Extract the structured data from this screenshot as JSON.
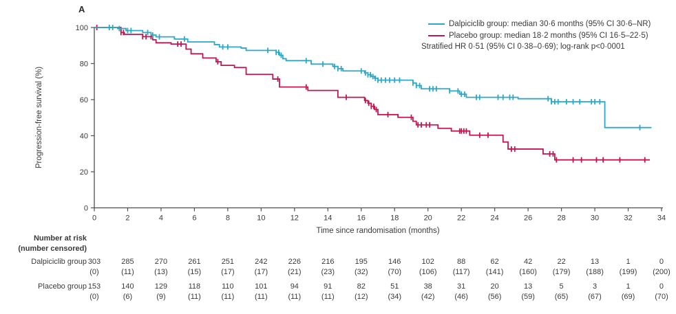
{
  "figure": {
    "panel_label": "A"
  },
  "chart_data": {
    "type": "line",
    "subtype": "kaplan-meier-step",
    "title": "",
    "xlabel": "Time since randomisation (months)",
    "ylabel": "Progression-free survival (%)",
    "xlim": [
      0,
      34
    ],
    "ylim": [
      0,
      100
    ],
    "x_ticks": [
      0,
      2,
      4,
      6,
      8,
      10,
      12,
      14,
      16,
      18,
      20,
      22,
      24,
      26,
      28,
      30,
      32,
      34
    ],
    "y_ticks": [
      0,
      20,
      40,
      60,
      80,
      100
    ],
    "grid": false,
    "legend_position": "top-right",
    "legend": {
      "items": [
        {
          "label": "Dalpiciclib group: median 30·6 months (95% CI 30·6–NR)",
          "color": "#2aa8c8"
        },
        {
          "label": "Placebo group: median 18·2 months (95% CI 16·5–22·5)",
          "color": "#bf1652"
        }
      ],
      "note": "Stratified HR 0·51 (95% CI 0·38–0·69); log-rank p<0·0001"
    },
    "series": [
      {
        "name": "Dalpiciclib group",
        "color": "#2aa8c8",
        "steps": [
          [
            0,
            100
          ],
          [
            1.4,
            99.4
          ],
          [
            1.9,
            98.3
          ],
          [
            2.9,
            97.2
          ],
          [
            3.4,
            95.8
          ],
          [
            3.7,
            94.8
          ],
          [
            4.8,
            93.6
          ],
          [
            5.6,
            92.0
          ],
          [
            7.2,
            90.5
          ],
          [
            7.5,
            89.2
          ],
          [
            8.8,
            88.6
          ],
          [
            9.1,
            87.3
          ],
          [
            10.9,
            86.2
          ],
          [
            11.1,
            84.6
          ],
          [
            11.3,
            82.7
          ],
          [
            11.5,
            81.6
          ],
          [
            13.0,
            79.7
          ],
          [
            14.3,
            78.4
          ],
          [
            14.6,
            77.2
          ],
          [
            14.9,
            75.9
          ],
          [
            16.2,
            74.8
          ],
          [
            16.4,
            73.8
          ],
          [
            16.6,
            72.8
          ],
          [
            16.8,
            71.8
          ],
          [
            17.0,
            70.8
          ],
          [
            19.1,
            69.2
          ],
          [
            19.3,
            67.8
          ],
          [
            19.6,
            66.0
          ],
          [
            21.3,
            64.8
          ],
          [
            21.9,
            63.0
          ],
          [
            22.3,
            61.3
          ],
          [
            25.4,
            60.5
          ],
          [
            27.4,
            58.8
          ],
          [
            30.6,
            44.5
          ]
        ],
        "censor_times": [
          0.9,
          1.1,
          1.5,
          2.0,
          2.2,
          3.2,
          3.5,
          3.9,
          5.4,
          7.7,
          8.0,
          10.4,
          10.9,
          11.05,
          11.2,
          12.7,
          13.7,
          14.4,
          14.6,
          14.8,
          16.0,
          16.25,
          16.4,
          16.55,
          16.7,
          16.85,
          17.0,
          17.2,
          17.45,
          17.7,
          18.0,
          18.3,
          19.1,
          19.3,
          19.5,
          20.1,
          20.3,
          20.5,
          21.3,
          21.8,
          22.0,
          22.2,
          22.9,
          23.1,
          24.2,
          24.5,
          24.9,
          25.1,
          27.2,
          27.4,
          27.6,
          27.8,
          28.3,
          28.7,
          29.1,
          29.8,
          30.0,
          30.3,
          32.7
        ],
        "end_time": 33.4
      },
      {
        "name": "Placebo group",
        "color": "#bf1652",
        "steps": [
          [
            0,
            100
          ],
          [
            1.6,
            97.2
          ],
          [
            1.8,
            96.2
          ],
          [
            2.9,
            94.9
          ],
          [
            3.5,
            93.2
          ],
          [
            3.7,
            91.5
          ],
          [
            4.6,
            90.8
          ],
          [
            5.5,
            88.0
          ],
          [
            5.8,
            85.4
          ],
          [
            6.5,
            83.1
          ],
          [
            7.3,
            81.0
          ],
          [
            7.6,
            79.0
          ],
          [
            8.4,
            77.8
          ],
          [
            9.1,
            74.0
          ],
          [
            10.7,
            71.4
          ],
          [
            11.1,
            67.0
          ],
          [
            12.8,
            65.1
          ],
          [
            14.6,
            61.3
          ],
          [
            16.2,
            59.5
          ],
          [
            16.4,
            58.0
          ],
          [
            16.6,
            56.3
          ],
          [
            16.8,
            54.5
          ],
          [
            17.0,
            51.7
          ],
          [
            18.2,
            50.2
          ],
          [
            19.1,
            48.0
          ],
          [
            19.3,
            46.0
          ],
          [
            20.6,
            44.1
          ],
          [
            21.4,
            42.6
          ],
          [
            22.5,
            40.3
          ],
          [
            24.5,
            36.5
          ],
          [
            24.8,
            32.6
          ],
          [
            26.9,
            29.9
          ],
          [
            27.6,
            26.6
          ]
        ],
        "censor_times": [
          0.15,
          1.6,
          1.75,
          2.9,
          3.1,
          3.4,
          5.0,
          5.2,
          7.4,
          11.0,
          12.7,
          15.1,
          16.25,
          16.45,
          16.6,
          16.75,
          16.9,
          17.6,
          19.0,
          19.4,
          19.6,
          19.9,
          20.1,
          21.9,
          22.0,
          22.15,
          22.3,
          23.1,
          23.6,
          25.0,
          25.2,
          27.3,
          27.5,
          27.7,
          28.7,
          29.2,
          30.1,
          30.5,
          31.5,
          33.0
        ],
        "end_time": 33.3
      }
    ]
  },
  "risk_table": {
    "header_line1": "Number at risk",
    "header_line2": "(number censored)",
    "time_points": [
      0,
      2,
      4,
      6,
      8,
      10,
      12,
      14,
      16,
      18,
      20,
      22,
      24,
      26,
      28,
      30,
      32,
      34
    ],
    "rows": [
      {
        "label": "Dalpiciclib group",
        "at_risk": [
          "303",
          "285",
          "270",
          "261",
          "251",
          "242",
          "226",
          "216",
          "195",
          "146",
          "102",
          "88",
          "62",
          "42",
          "22",
          "13",
          "1",
          "0"
        ],
        "censored": [
          "(0)",
          "(11)",
          "(13)",
          "(15)",
          "(17)",
          "(17)",
          "(21)",
          "(23)",
          "(32)",
          "(70)",
          "(106)",
          "(117)",
          "(141)",
          "(160)",
          "(179)",
          "(188)",
          "(199)",
          "(200)"
        ]
      },
      {
        "label": "Placebo group",
        "at_risk": [
          "153",
          "140",
          "129",
          "118",
          "110",
          "101",
          "94",
          "91",
          "82",
          "51",
          "38",
          "31",
          "20",
          "13",
          "5",
          "3",
          "1",
          "0"
        ],
        "censored": [
          "(0)",
          "(6)",
          "(9)",
          "(11)",
          "(11)",
          "(11)",
          "(11)",
          "(11)",
          "(12)",
          "(34)",
          "(42)",
          "(46)",
          "(56)",
          "(59)",
          "(65)",
          "(67)",
          "(69)",
          "(70)"
        ]
      }
    ]
  },
  "colors": {
    "axis": "#4d4d4d",
    "text": "#3a3a3a"
  }
}
